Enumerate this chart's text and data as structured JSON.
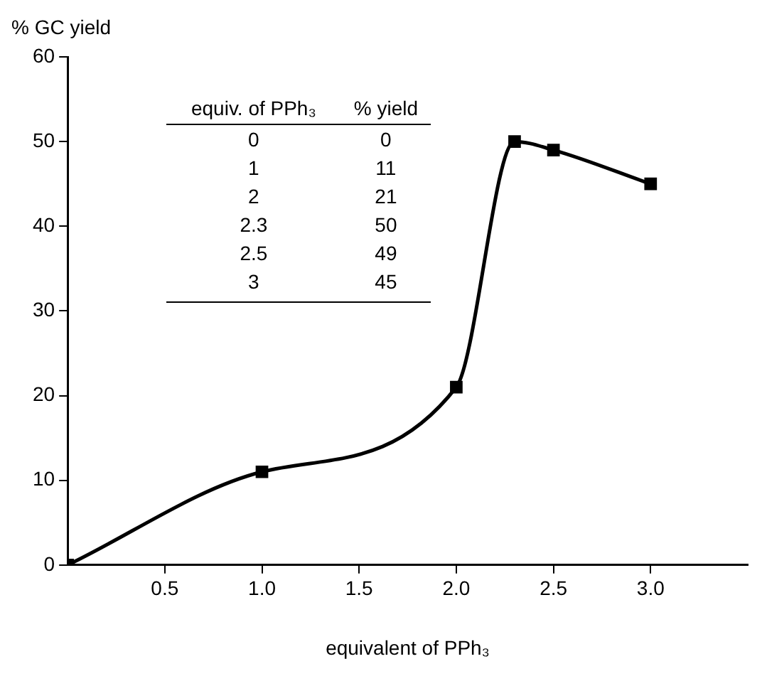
{
  "chart_data": [
    {
      "type": "line",
      "xlabel": "equivalent of PPh₃",
      "ylabel": "% GC yield",
      "x": [
        0,
        1,
        2,
        2.3,
        2.5,
        3
      ],
      "series": [
        {
          "color": "#000000",
          "values": [
            0,
            11,
            21,
            50,
            49,
            45
          ]
        }
      ],
      "xlim": [
        0,
        3.5
      ],
      "xticks": [
        {
          "value": 0.5,
          "label": "0.5"
        },
        {
          "value": 1,
          "label": "1.0"
        },
        {
          "value": 1.5,
          "label": "1.5"
        },
        {
          "value": 2,
          "label": "2.0"
        },
        {
          "value": 2.5,
          "label": "2.5"
        },
        {
          "value": 3,
          "label": "3.0"
        }
      ],
      "ylim": [
        0,
        60
      ],
      "yticks": [
        0,
        10,
        20,
        30,
        40,
        50,
        60
      ],
      "grid": false,
      "legend": false,
      "marker": "square",
      "line_style": "solid"
    },
    {
      "type": "other",
      "xlabel": "equiv. of PPh₃",
      "ylabel": "% yield",
      "categories": [
        "0",
        "1",
        "2",
        "2.3",
        "2.5",
        "3"
      ],
      "values": [
        0,
        11,
        21,
        50,
        49,
        45
      ],
      "data_labels": true
    }
  ]
}
